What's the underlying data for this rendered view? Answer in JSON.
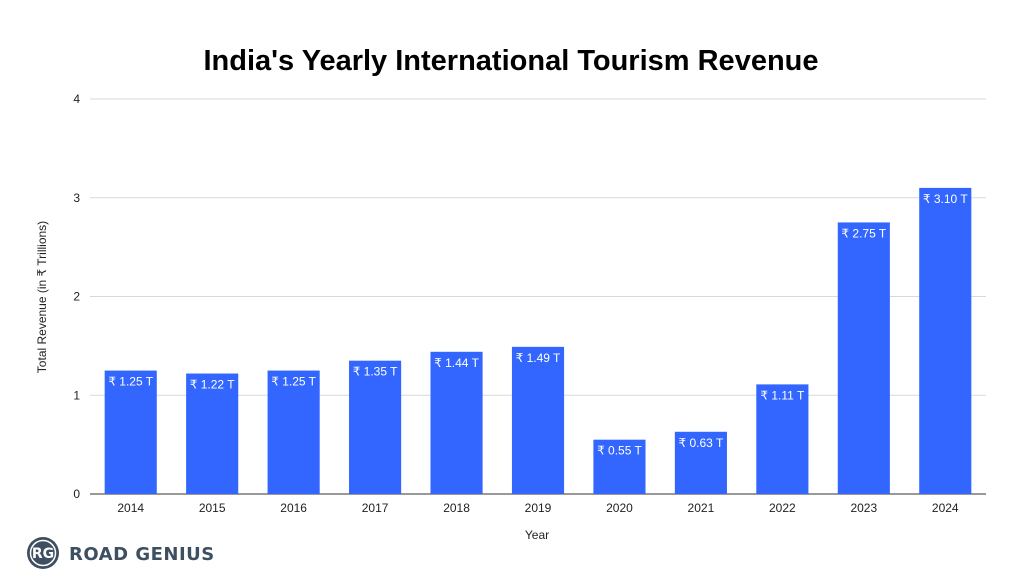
{
  "chart_data": {
    "type": "bar",
    "title": "India's Yearly International Tourism Revenue",
    "xlabel": "Year",
    "ylabel": "Total Revenue (in ₹ Trillions)",
    "ylim": [
      0,
      4
    ],
    "yticks": [
      "0",
      "1",
      "2",
      "3",
      "4"
    ],
    "grid": true,
    "categories": [
      "2014",
      "2015",
      "2016",
      "2017",
      "2018",
      "2019",
      "2020",
      "2021",
      "2022",
      "2023",
      "2024"
    ],
    "values": [
      1.25,
      1.22,
      1.25,
      1.35,
      1.44,
      1.49,
      0.55,
      0.63,
      1.11,
      2.75,
      3.1
    ],
    "data_labels": [
      "₹ 1.25 T",
      "₹ 1.22 T",
      "₹ 1.25 T",
      "₹ 1.35 T",
      "₹ 1.44 T",
      "₹ 1.49 T",
      "₹ 0.55 T",
      "₹ 0.63 T",
      "₹ 1.11 T",
      "₹ 2.75 T",
      "₹ 3.10 T"
    ],
    "bar_color": "#3366ff"
  },
  "branding": {
    "logo_monogram": "RG",
    "logo_text": "ROAD GENIUS",
    "logo_color": "#3d4f60"
  }
}
